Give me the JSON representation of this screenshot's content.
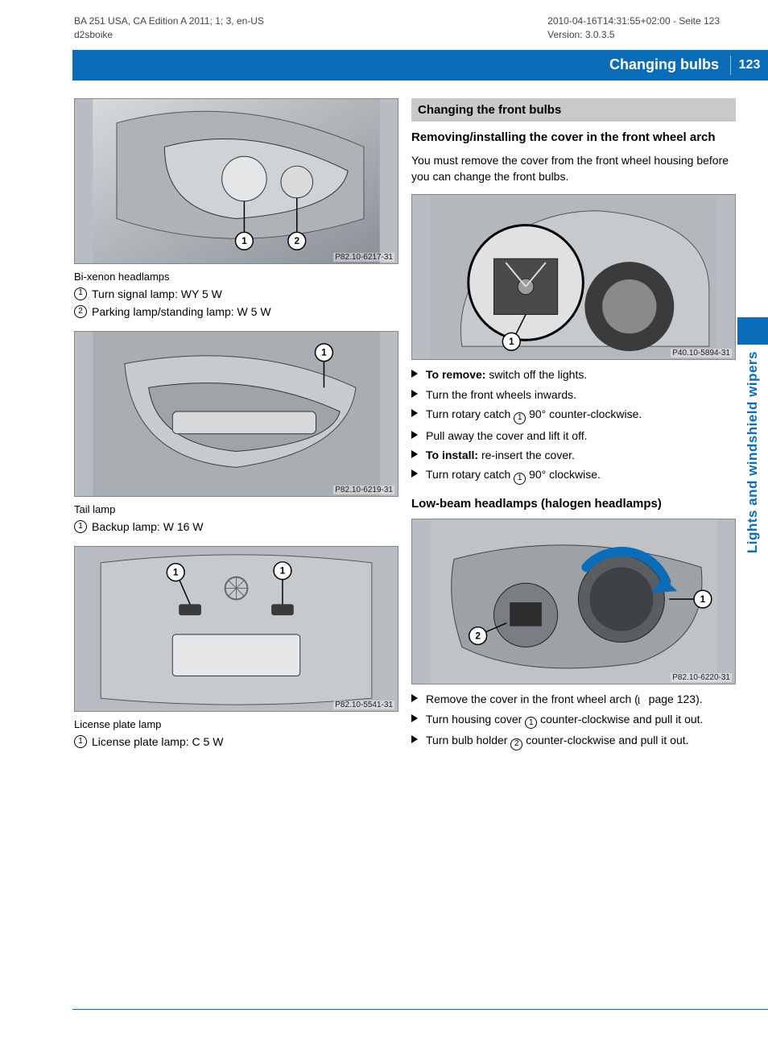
{
  "meta": {
    "left1": "BA 251 USA, CA Edition A 2011; 1; 3, en-US",
    "left2": "d2sboike",
    "right1": "2010-04-16T14:31:55+02:00 - Seite 123",
    "right2": "Version: 3.0.3.5"
  },
  "header": {
    "title": "Changing bulbs",
    "page": "123"
  },
  "side_tab": "Lights and windshield wipers",
  "colors": {
    "brand_blue": "#0b6db7",
    "grey_head": "#c9c9c9",
    "fig_bg": "#b7bdc2"
  },
  "left_col": {
    "fig1": {
      "code": "P82.10-6217-31",
      "callouts": [
        "1",
        "2"
      ]
    },
    "cap1": "Bi-xenon headlamps",
    "legend1": [
      {
        "n": "1",
        "t": "Turn signal lamp: WY 5 W"
      },
      {
        "n": "2",
        "t": "Parking lamp/standing lamp: W 5 W"
      }
    ],
    "fig2": {
      "code": "P82.10-6219-31",
      "callouts": [
        "1"
      ]
    },
    "cap2": "Tail lamp",
    "legend2": [
      {
        "n": "1",
        "t": "Backup lamp: W 16 W"
      }
    ],
    "fig3": {
      "code": "P82.10-5541-31",
      "callouts": [
        "1",
        "1"
      ]
    },
    "cap3": "License plate lamp",
    "legend3": [
      {
        "n": "1",
        "t": "License plate lamp: C 5 W"
      }
    ]
  },
  "right_col": {
    "grey_head": "Changing the front bulbs",
    "sub1": "Removing/installing the cover in the front wheel arch",
    "para1": "You must remove the cover from the front wheel housing before you can change the front bulbs.",
    "figa": {
      "code": "P40.10-5894-31",
      "callouts": [
        "1"
      ]
    },
    "steps1": [
      {
        "bold": "To remove:",
        "rest": " switch off the lights."
      },
      {
        "rest": "Turn the front wheels inwards."
      },
      {
        "rest_html": "Turn rotary catch <span class='inline-circ'>1</span> 90° counter-clockwise."
      },
      {
        "rest": "Pull away the cover and lift it off."
      },
      {
        "bold": "To install:",
        "rest": " re-insert the cover."
      },
      {
        "rest_html": "Turn rotary catch <span class='inline-circ'>1</span> 90° clockwise."
      }
    ],
    "sub2": "Low-beam headlamps (halogen headlamps)",
    "figb": {
      "code": "P82.10-6220-31",
      "callouts": [
        "1",
        "2"
      ]
    },
    "steps2": [
      {
        "rest_html": "Remove the cover in the front wheel arch (<span class='inline-xref-outline'></span> page 123)."
      },
      {
        "rest_html": "Turn housing cover <span class='inline-circ'>1</span> counter-clockwise and pull it out."
      },
      {
        "rest_html": "Turn bulb holder <span class='inline-circ'>2</span> counter-clockwise and pull it out."
      }
    ]
  }
}
